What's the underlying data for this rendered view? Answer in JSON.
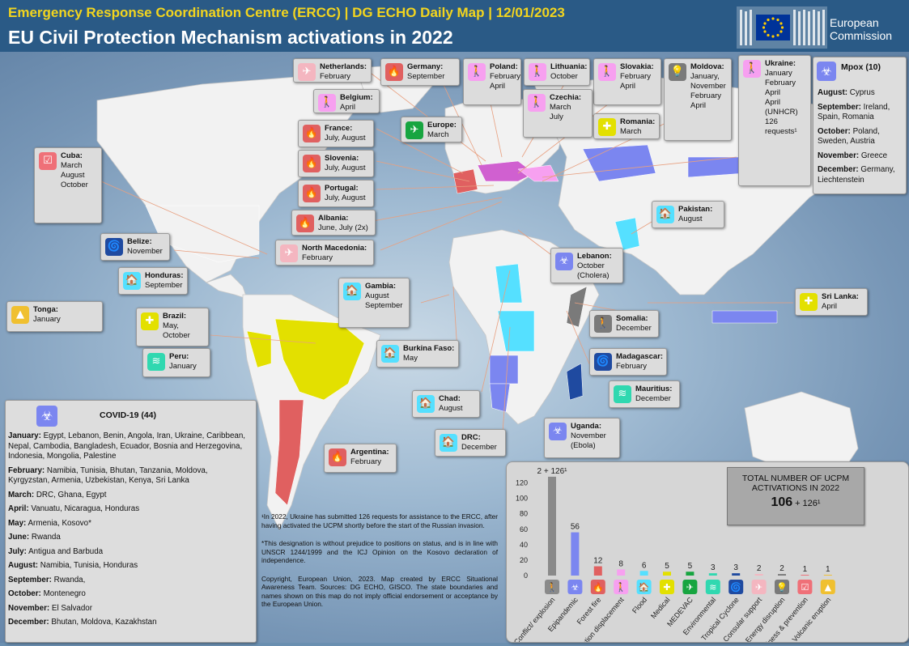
{
  "header": {
    "line1": "Emergency Response Coordination Centre (ERCC) | DG ECHO Daily Map | 12/01/2023",
    "line2": "EU Civil Protection Mechanism activations in 2022",
    "logo_line1": "European",
    "logo_line2": "Commission"
  },
  "colors": {
    "header_bg": "#2a5a86",
    "title_yellow": "#f3d51e",
    "covid": "#7b86f0",
    "mpox": "#7b86f0",
    "forest_fire": "#e06060",
    "medical": "#e3e000",
    "flood": "#55e0ff",
    "population_displacement": "#f7a0f0",
    "conflict": "#7a7a7a",
    "medevac": "#17a540",
    "tropical_cyclone": "#1f4aa0",
    "environmental": "#30d8b0",
    "consular": "#f4b6c0",
    "volcanic": "#f0c030",
    "preparedness": "#ef7078"
  },
  "callouts": [
    {
      "id": "netherlands",
      "name": "Netherlands:",
      "lines": [
        "February"
      ],
      "icon": "consular-plane-icon",
      "icon_glyph": "✈",
      "icon_color": "#f4b6c0"
    },
    {
      "id": "germany",
      "name": "Germany:",
      "lines": [
        "September"
      ],
      "icon": "forest-fire-icon",
      "icon_glyph": "🔥",
      "icon_color": "#e06060"
    },
    {
      "id": "poland",
      "name": "Poland:",
      "lines": [
        "February",
        "April"
      ],
      "icon": "displacement-icon",
      "icon_glyph": "🚶",
      "icon_color": "#f7a0f0"
    },
    {
      "id": "lithuania",
      "name": "Lithuania:",
      "lines": [
        "October"
      ],
      "icon": "displacement-icon",
      "icon_glyph": "🚶",
      "icon_color": "#f7a0f0"
    },
    {
      "id": "slovakia",
      "name": "Slovakia:",
      "lines": [
        "February",
        "April"
      ],
      "icon": "displacement-icon",
      "icon_glyph": "🚶",
      "icon_color": "#f7a0f0"
    },
    {
      "id": "moldova",
      "name": "Moldova:",
      "lines": [
        "January,",
        "November",
        "February",
        "April"
      ],
      "icon": "energy-icon",
      "icon_glyph": "💡",
      "icon_color": "#7a7a7a"
    },
    {
      "id": "ukraine",
      "name": "Ukraine:",
      "lines": [
        "January",
        "February",
        "April",
        "April",
        "(UNHCR)",
        "126",
        "requests¹"
      ],
      "icon": "displacement-icon",
      "icon_glyph": "🚶",
      "icon_color": "#f7a0f0"
    },
    {
      "id": "belgium",
      "name": "Belgium:",
      "lines": [
        "April"
      ],
      "icon": "displacement-icon",
      "icon_glyph": "🚶",
      "icon_color": "#f7a0f0"
    },
    {
      "id": "czechia",
      "name": "Czechia:",
      "lines": [
        "March",
        "July"
      ],
      "icon": "displacement-icon",
      "icon_glyph": "🚶",
      "icon_color": "#f7a0f0"
    },
    {
      "id": "france",
      "name": "France:",
      "lines": [
        "July, August"
      ],
      "icon": "forest-fire-icon",
      "icon_glyph": "🔥",
      "icon_color": "#e06060"
    },
    {
      "id": "europe",
      "name": "Europe:",
      "lines": [
        "March"
      ],
      "icon": "medevac-icon",
      "icon_glyph": "✈",
      "icon_color": "#17a540"
    },
    {
      "id": "romania",
      "name": "Romania:",
      "lines": [
        "March"
      ],
      "icon": "medical-icon",
      "icon_glyph": "✚",
      "icon_color": "#e3e000"
    },
    {
      "id": "slovenia",
      "name": "Slovenia:",
      "lines": [
        "July, August"
      ],
      "icon": "forest-fire-icon",
      "icon_glyph": "🔥",
      "icon_color": "#e06060"
    },
    {
      "id": "portugal",
      "name": "Portugal:",
      "lines": [
        "July, August"
      ],
      "icon": "forest-fire-icon",
      "icon_glyph": "🔥",
      "icon_color": "#e06060"
    },
    {
      "id": "albania",
      "name": "Albania:",
      "lines": [
        "June, July (2x)"
      ],
      "icon": "forest-fire-icon",
      "icon_glyph": "🔥",
      "icon_color": "#e06060"
    },
    {
      "id": "north_macedonia",
      "name": "North Macedonia:",
      "lines": [
        "February"
      ],
      "icon": "consular-plane-icon",
      "icon_glyph": "✈",
      "icon_color": "#f4b6c0"
    },
    {
      "id": "cuba",
      "name": "Cuba:",
      "lines": [
        "March",
        "August",
        "October"
      ],
      "icon": "preparedness-icon",
      "icon_glyph": "☑",
      "icon_color": "#ef7078"
    },
    {
      "id": "belize",
      "name": "Belize:",
      "lines": [
        "November"
      ],
      "icon": "tropical-cyclone-icon",
      "icon_glyph": "🌀",
      "icon_color": "#1f4aa0"
    },
    {
      "id": "honduras",
      "name": "Honduras:",
      "lines": [
        "September"
      ],
      "icon": "flood-icon",
      "icon_glyph": "🏠",
      "icon_color": "#55e0ff"
    },
    {
      "id": "tonga",
      "name": "Tonga:",
      "lines": [
        "January"
      ],
      "icon": "volcano-icon",
      "icon_glyph": "▲",
      "icon_color": "#f0c030"
    },
    {
      "id": "brazil",
      "name": "Brazil:",
      "lines": [
        "May,",
        "October"
      ],
      "icon": "medical-icon",
      "icon_glyph": "✚",
      "icon_color": "#e3e000"
    },
    {
      "id": "peru",
      "name": "Peru:",
      "lines": [
        "January"
      ],
      "icon": "environmental-icon",
      "icon_glyph": "≋",
      "icon_color": "#30d8b0"
    },
    {
      "id": "argentina",
      "name": "Argentina:",
      "lines": [
        "February"
      ],
      "icon": "forest-fire-icon",
      "icon_glyph": "🔥",
      "icon_color": "#e06060"
    },
    {
      "id": "gambia",
      "name": "Gambia:",
      "lines": [
        "August",
        "September"
      ],
      "icon": "flood-icon",
      "icon_glyph": "🏠",
      "icon_color": "#55e0ff"
    },
    {
      "id": "burkina",
      "name": "Burkina Faso:",
      "lines": [
        "May"
      ],
      "icon": "flood-icon",
      "icon_glyph": "🏠",
      "icon_color": "#55e0ff"
    },
    {
      "id": "chad",
      "name": "Chad:",
      "lines": [
        "August"
      ],
      "icon": "flood-icon",
      "icon_glyph": "🏠",
      "icon_color": "#55e0ff"
    },
    {
      "id": "drc",
      "name": "DRC:",
      "lines": [
        "December"
      ],
      "icon": "flood-icon",
      "icon_glyph": "🏠",
      "icon_color": "#55e0ff"
    },
    {
      "id": "uganda",
      "name": "Uganda:",
      "lines": [
        "November",
        "(Ebola)"
      ],
      "icon": "epidemic-icon",
      "icon_glyph": "☣",
      "icon_color": "#7b86f0"
    },
    {
      "id": "lebanon",
      "name": "Lebanon:",
      "lines": [
        "October",
        "(Cholera)"
      ],
      "icon": "epidemic-icon",
      "icon_glyph": "☣",
      "icon_color": "#7b86f0"
    },
    {
      "id": "somalia",
      "name": "Somalia:",
      "lines": [
        "December"
      ],
      "icon": "conflict-icon",
      "icon_glyph": "🚶",
      "icon_color": "#7a7a7a"
    },
    {
      "id": "madagascar",
      "name": "Madagascar:",
      "lines": [
        "February"
      ],
      "icon": "tropical-cyclone-icon",
      "icon_glyph": "🌀",
      "icon_color": "#1f4aa0"
    },
    {
      "id": "mauritius",
      "name": "Mauritius:",
      "lines": [
        "December"
      ],
      "icon": "environmental-icon",
      "icon_glyph": "≋",
      "icon_color": "#30d8b0"
    },
    {
      "id": "pakistan",
      "name": "Pakistan:",
      "lines": [
        "August"
      ],
      "icon": "flood-icon",
      "icon_glyph": "🏠",
      "icon_color": "#55e0ff"
    },
    {
      "id": "srilanka",
      "name": "Sri Lanka:",
      "lines": [
        "April"
      ],
      "icon": "medical-icon",
      "icon_glyph": "✚",
      "icon_color": "#e3e000"
    }
  ],
  "covid": {
    "title": "COVID-19 (44)",
    "rows": [
      {
        "month": "January:",
        "text": "Egypt, Lebanon, Benin, Angola, Iran, Ukraine, Caribbean, Nepal, Cambodia, Bangladesh, Ecuador, Bosnia and Herzegovina, Indonesia, Mongolia, Palestine"
      },
      {
        "month": "February:",
        "text": "Namibia, Tunisia, Bhutan, Tanzania, Moldova, Kyrgyzstan, Armenia, Uzbekistan, Kenya, Sri Lanka"
      },
      {
        "month": "March:",
        "text": "DRC, Ghana, Egypt"
      },
      {
        "month": "April:",
        "text": "Vanuatu, Nicaragua, Honduras"
      },
      {
        "month": "May:",
        "text": "Armenia, Kosovo*"
      },
      {
        "month": "June:",
        "text": "Rwanda"
      },
      {
        "month": "July:",
        "text": "Antigua and Barbuda"
      },
      {
        "month": "August:",
        "text": "Namibia, Tunisia, Honduras"
      },
      {
        "month": "September:",
        "text": "Rwanda,"
      },
      {
        "month": "October:",
        "text": "Montenegro"
      },
      {
        "month": "November:",
        "text": "El Salvador"
      },
      {
        "month": "December:",
        "text": "Bhutan, Moldova, Kazakhstan"
      }
    ]
  },
  "mpox": {
    "title": "Mpox (10)",
    "rows": [
      {
        "month": "August:",
        "text": "Cyprus"
      },
      {
        "month": "September:",
        "text": "Ireland, Spain, Romania"
      },
      {
        "month": "October:",
        "text": "Poland, Sweden, Austria"
      },
      {
        "month": "November:",
        "text": "Greece"
      },
      {
        "month": "December:",
        "text": "Germany, Liechtenstein"
      }
    ]
  },
  "notes": {
    "footnote1": "¹In 2022, Ukraine has submitted 126 requests for assistance to the ERCC, after having activated the UCPM shortly before the start of the Russian invasion.",
    "footnote2": "*This designation is without prejudice to positions on status, and is in line with UNSCR 1244/1999 and the ICJ Opinion on the Kosovo declaration of independence.",
    "copyright": "Copyright, European Union, 2023. Map created by ERCC Situational Awareness Team. Sources: DG ECHO, GISCO. The state boundaries and names shown on this map do not imply official endorsement or acceptance by the European Union."
  },
  "total": {
    "line1": "TOTAL NUMBER  OF UCPM",
    "line2": "ACTIVATIONS  IN 2022",
    "value": "106",
    "suffix": "+ 126¹"
  },
  "chart_data": {
    "type": "bar",
    "categories": [
      "Conflict/ explosion",
      "Epipandemic",
      "Forest fire",
      "Population displacement",
      "Flood",
      "Medical",
      "MEDEVAC",
      "Environmental",
      "Tropical Cyclone",
      "Consular support",
      "Energy disruption",
      "Preparedness & prevention",
      "Volcanic eruption"
    ],
    "values": [
      128,
      56,
      12,
      8,
      6,
      5,
      5,
      3,
      3,
      2,
      2,
      1,
      1
    ],
    "labels": [
      "2 + 126¹",
      "56",
      "12",
      "8",
      "6",
      "5",
      "5",
      "3",
      "3",
      "2",
      "2",
      "1",
      "1"
    ],
    "colors": [
      "#8a8a8a",
      "#7b86f0",
      "#e06060",
      "#f7a0f0",
      "#55e0ff",
      "#e3e000",
      "#17a540",
      "#30d8b0",
      "#1f4aa0",
      "#f4b6c0",
      "#7a7a7a",
      "#ef7078",
      "#f0c030"
    ],
    "icon_glyphs": [
      "🚶",
      "☣",
      "🔥",
      "🚶",
      "🏠",
      "✚",
      "✈",
      "≋",
      "🌀",
      "✈",
      "💡",
      "☑",
      "▲"
    ],
    "ylim": [
      0,
      130
    ],
    "yticks": [
      0,
      20,
      40,
      60,
      80,
      100,
      120
    ]
  }
}
